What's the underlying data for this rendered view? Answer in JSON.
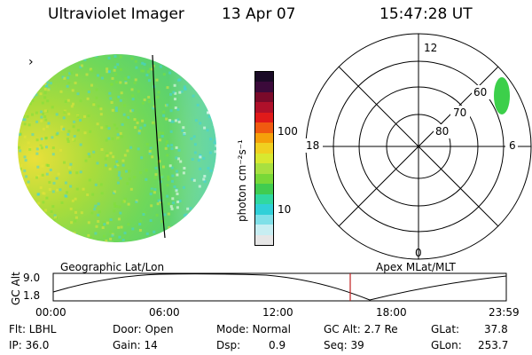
{
  "header": {
    "title": "Ultraviolet Imager",
    "date": "13 Apr 07",
    "time": "15:47:28 UT"
  },
  "image_panel": {
    "marker_glyph": "›",
    "palette": {
      "background": "#ffffff",
      "ring": "#000000",
      "low": "#3fd3e0",
      "mid": "#7fe03a",
      "high": "#e6e43a"
    }
  },
  "colorbar": {
    "unit_label": "photon cm⁻²s⁻¹",
    "tick_labels": [
      "100",
      "10"
    ],
    "colors": [
      "#1a0a26",
      "#3b0a3a",
      "#7a0a2a",
      "#b0102a",
      "#e01a1a",
      "#f05a10",
      "#f5a00a",
      "#f0d020",
      "#d8e830",
      "#a8e040",
      "#78d838",
      "#40cc50",
      "#30d8a0",
      "#30d0d8",
      "#80e0e8",
      "#c8eef2",
      "#e6e6e6"
    ]
  },
  "polar_plot": {
    "mlt_labels": [
      "12",
      "18",
      "6",
      "0"
    ],
    "lat_labels": [
      "60",
      "70",
      "80"
    ]
  },
  "timeline": {
    "left_label": "Geographic Lat/Lon",
    "right_label": "Apex MLat/MLT",
    "axis_title": "GC Alt",
    "y_ticks": [
      "9.0",
      "1.8"
    ],
    "x_ticks": [
      "00:00",
      "06:00",
      "12:00",
      "18:00",
      "23:59"
    ],
    "current_marker_color": "#c02020"
  },
  "status": {
    "flt": "Flt: LBHL",
    "ip": "IP: 36.0",
    "door": "Door: Open",
    "gain": "Gain: 14",
    "mode": "Mode: Normal",
    "dsp_label": "Dsp:",
    "dsp_value": "0.9",
    "gc_alt": "GC Alt: 2.7 Re",
    "seq": "Seq: 39",
    "glat_label": "GLat:",
    "glat_value": "37.8",
    "glon_label": "GLon:",
    "glon_value": "253.7"
  }
}
